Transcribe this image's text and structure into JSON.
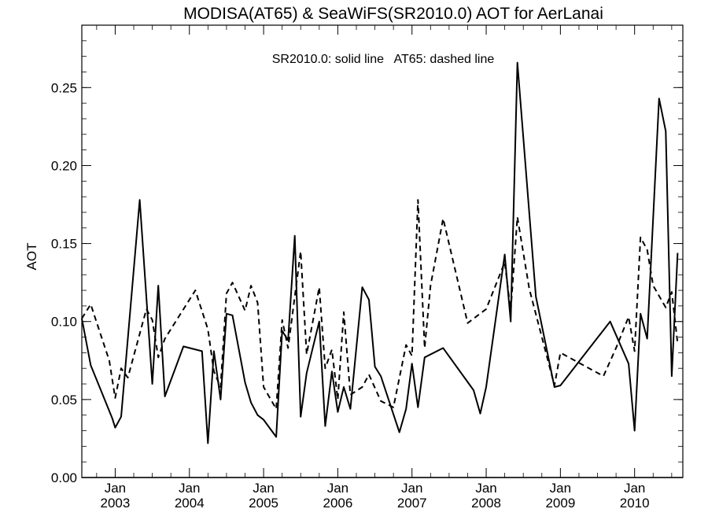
{
  "chart_data": {
    "type": "line",
    "title": "MODISA(AT65) & SeaWiFS(SR2010.0)  AOT for AerLanai",
    "annotation": "SR2010.0: solid line   AT65: dashed line",
    "ylabel": "AOT",
    "xlabel": "",
    "xlim": [
      2002.55,
      2010.65
    ],
    "ylim": [
      0.0,
      0.29
    ],
    "y_ticks": [
      "0.00",
      "0.05",
      "0.10",
      "0.15",
      "0.20",
      "0.25"
    ],
    "x_ticks": [
      {
        "month": "Jan",
        "year": "2003",
        "x": 2003.0
      },
      {
        "month": "Jan",
        "year": "2004",
        "x": 2004.0
      },
      {
        "month": "Jan",
        "year": "2005",
        "x": 2005.0
      },
      {
        "month": "Jan",
        "year": "2006",
        "x": 2006.0
      },
      {
        "month": "Jan",
        "year": "2007",
        "x": 2007.0
      },
      {
        "month": "Jan",
        "year": "2008",
        "x": 2008.0
      },
      {
        "month": "Jan",
        "year": "2009",
        "x": 2009.0
      },
      {
        "month": "Jan",
        "year": "2010",
        "x": 2010.0
      }
    ],
    "series": [
      {
        "name": "SR2010.0",
        "style": "solid",
        "color": "#000000",
        "points": [
          [
            2002.55,
            0.102
          ],
          [
            2002.67,
            0.072
          ],
          [
            2002.96,
            0.038
          ],
          [
            2003.0,
            0.032
          ],
          [
            2003.08,
            0.039
          ],
          [
            2003.33,
            0.178
          ],
          [
            2003.5,
            0.06
          ],
          [
            2003.58,
            0.123
          ],
          [
            2003.67,
            0.052
          ],
          [
            2003.92,
            0.084
          ],
          [
            2004.17,
            0.081
          ],
          [
            2004.25,
            0.022
          ],
          [
            2004.33,
            0.081
          ],
          [
            2004.42,
            0.05
          ],
          [
            2004.5,
            0.105
          ],
          [
            2004.58,
            0.104
          ],
          [
            2004.75,
            0.061
          ],
          [
            2004.83,
            0.048
          ],
          [
            2004.92,
            0.04
          ],
          [
            2005.0,
            0.037
          ],
          [
            2005.17,
            0.026
          ],
          [
            2005.25,
            0.094
          ],
          [
            2005.33,
            0.088
          ],
          [
            2005.42,
            0.155
          ],
          [
            2005.5,
            0.039
          ],
          [
            2005.58,
            0.067
          ],
          [
            2005.75,
            0.1
          ],
          [
            2005.83,
            0.033
          ],
          [
            2005.92,
            0.068
          ],
          [
            2006.0,
            0.042
          ],
          [
            2006.08,
            0.058
          ],
          [
            2006.17,
            0.044
          ],
          [
            2006.33,
            0.122
          ],
          [
            2006.42,
            0.114
          ],
          [
            2006.5,
            0.071
          ],
          [
            2006.58,
            0.065
          ],
          [
            2006.83,
            0.029
          ],
          [
            2006.92,
            0.044
          ],
          [
            2007.0,
            0.073
          ],
          [
            2007.08,
            0.045
          ],
          [
            2007.17,
            0.077
          ],
          [
            2007.42,
            0.083
          ],
          [
            2007.83,
            0.056
          ],
          [
            2007.92,
            0.041
          ],
          [
            2008.0,
            0.058
          ],
          [
            2008.25,
            0.143
          ],
          [
            2008.33,
            0.1
          ],
          [
            2008.42,
            0.266
          ],
          [
            2008.67,
            0.116
          ],
          [
            2008.92,
            0.058
          ],
          [
            2009.0,
            0.059
          ],
          [
            2009.67,
            0.1
          ],
          [
            2009.92,
            0.073
          ],
          [
            2010.0,
            0.03
          ],
          [
            2010.08,
            0.105
          ],
          [
            2010.17,
            0.089
          ],
          [
            2010.33,
            0.243
          ],
          [
            2010.42,
            0.222
          ],
          [
            2010.5,
            0.065
          ],
          [
            2010.58,
            0.144
          ]
        ]
      },
      {
        "name": "AT65",
        "style": "dashed",
        "color": "#000000",
        "points": [
          [
            2002.55,
            0.102
          ],
          [
            2002.67,
            0.111
          ],
          [
            2002.92,
            0.075
          ],
          [
            2003.0,
            0.051
          ],
          [
            2003.08,
            0.07
          ],
          [
            2003.17,
            0.064
          ],
          [
            2003.42,
            0.108
          ],
          [
            2003.5,
            0.101
          ],
          [
            2003.58,
            0.077
          ],
          [
            2003.67,
            0.089
          ],
          [
            2004.08,
            0.12
          ],
          [
            2004.25,
            0.095
          ],
          [
            2004.33,
            0.068
          ],
          [
            2004.42,
            0.058
          ],
          [
            2004.5,
            0.118
          ],
          [
            2004.58,
            0.125
          ],
          [
            2004.75,
            0.107
          ],
          [
            2004.83,
            0.123
          ],
          [
            2004.92,
            0.112
          ],
          [
            2005.0,
            0.058
          ],
          [
            2005.17,
            0.044
          ],
          [
            2005.25,
            0.101
          ],
          [
            2005.33,
            0.083
          ],
          [
            2005.5,
            0.145
          ],
          [
            2005.58,
            0.079
          ],
          [
            2005.75,
            0.122
          ],
          [
            2005.83,
            0.07
          ],
          [
            2005.92,
            0.082
          ],
          [
            2006.0,
            0.05
          ],
          [
            2006.08,
            0.106
          ],
          [
            2006.17,
            0.053
          ],
          [
            2006.33,
            0.058
          ],
          [
            2006.42,
            0.066
          ],
          [
            2006.58,
            0.049
          ],
          [
            2006.75,
            0.045
          ],
          [
            2006.92,
            0.085
          ],
          [
            2007.0,
            0.078
          ],
          [
            2007.08,
            0.178
          ],
          [
            2007.17,
            0.083
          ],
          [
            2007.25,
            0.123
          ],
          [
            2007.42,
            0.166
          ],
          [
            2007.75,
            0.099
          ],
          [
            2008.0,
            0.108
          ],
          [
            2008.25,
            0.138
          ],
          [
            2008.33,
            0.107
          ],
          [
            2008.42,
            0.167
          ],
          [
            2008.58,
            0.121
          ],
          [
            2008.92,
            0.059
          ],
          [
            2009.0,
            0.08
          ],
          [
            2009.58,
            0.065
          ],
          [
            2009.75,
            0.083
          ],
          [
            2009.92,
            0.103
          ],
          [
            2010.0,
            0.081
          ],
          [
            2010.08,
            0.154
          ],
          [
            2010.17,
            0.146
          ],
          [
            2010.25,
            0.123
          ],
          [
            2010.42,
            0.109
          ],
          [
            2010.5,
            0.119
          ],
          [
            2010.58,
            0.086
          ]
        ]
      }
    ]
  }
}
